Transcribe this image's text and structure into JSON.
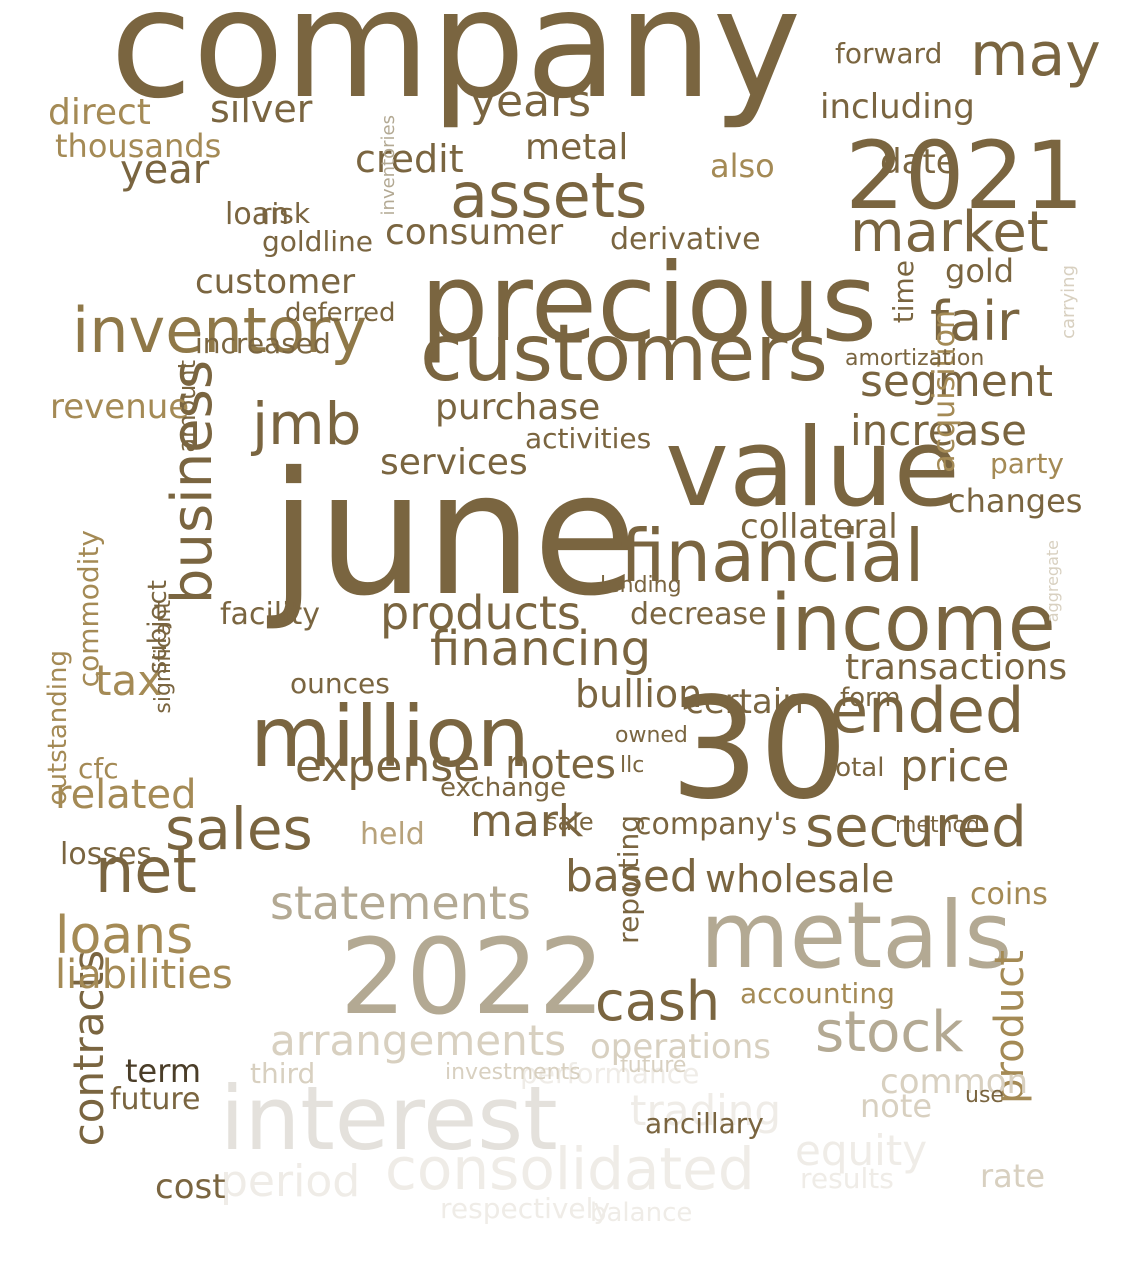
{
  "palette": {
    "dark": "#7a6540",
    "mid": "#8f7848",
    "gold": "#a48a55",
    "tan": "#b7a27b",
    "gray": "#b3a993",
    "light": "#d8d0c0",
    "pale": "#e4e1dc",
    "faint": "#efece7",
    "black": "#4a3d28"
  },
  "words": [
    {
      "text": "company",
      "weight": 1.0,
      "color": "dark",
      "rot": 0
    },
    {
      "text": "june",
      "weight": 0.95,
      "color": "dark",
      "rot": 0
    },
    {
      "text": "precious",
      "weight": 0.9,
      "color": "dark",
      "rot": 0
    },
    {
      "text": "30",
      "weight": 0.88,
      "color": "dark",
      "rot": 0
    },
    {
      "text": "value",
      "weight": 0.85,
      "color": "dark",
      "rot": 0
    },
    {
      "text": "2021",
      "weight": 0.8,
      "color": "dark",
      "rot": 0
    },
    {
      "text": "metals",
      "weight": 0.78,
      "color": "gray",
      "rot": 0
    },
    {
      "text": "2022",
      "weight": 0.78,
      "color": "gray",
      "rot": 0
    },
    {
      "text": "million",
      "weight": 0.75,
      "color": "dark",
      "rot": 0
    },
    {
      "text": "customers",
      "weight": 0.74,
      "color": "dark",
      "rot": 0
    },
    {
      "text": "financial",
      "weight": 0.72,
      "color": "dark",
      "rot": 0
    },
    {
      "text": "income",
      "weight": 0.72,
      "color": "dark",
      "rot": 0
    },
    {
      "text": "interest",
      "weight": 0.72,
      "color": "pale",
      "rot": 0
    },
    {
      "text": "business",
      "weight": 0.7,
      "color": "dark",
      "rot": -90
    },
    {
      "text": "inventory",
      "weight": 0.68,
      "color": "mid",
      "rot": 0
    },
    {
      "text": "assets",
      "weight": 0.66,
      "color": "dark",
      "rot": 0
    },
    {
      "text": "secured",
      "weight": 0.6,
      "color": "dark",
      "rot": 0
    },
    {
      "text": "sales",
      "weight": 0.6,
      "color": "dark",
      "rot": 0
    },
    {
      "text": "ended",
      "weight": 0.6,
      "color": "dark",
      "rot": 0
    },
    {
      "text": "net",
      "weight": 0.6,
      "color": "dark",
      "rot": 0
    },
    {
      "text": "market",
      "weight": 0.58,
      "color": "dark",
      "rot": 0
    },
    {
      "text": "consolidated",
      "weight": 0.58,
      "color": "faint",
      "rot": 0
    },
    {
      "text": "stock",
      "weight": 0.56,
      "color": "gray",
      "rot": 0
    },
    {
      "text": "fair",
      "weight": 0.56,
      "color": "dark",
      "rot": 0
    },
    {
      "text": "may",
      "weight": 0.56,
      "color": "dark",
      "rot": 0
    },
    {
      "text": "cash",
      "weight": 0.56,
      "color": "dark",
      "rot": 0
    },
    {
      "text": "jmb",
      "weight": 0.56,
      "color": "dark",
      "rot": 0
    },
    {
      "text": "statements",
      "weight": 0.54,
      "color": "gray",
      "rot": 0
    },
    {
      "text": "arrangements",
      "weight": 0.52,
      "color": "light",
      "rot": 0
    },
    {
      "text": "loans",
      "weight": 0.52,
      "color": "gold",
      "rot": 0
    },
    {
      "text": "period",
      "weight": 0.52,
      "color": "faint",
      "rot": 0
    },
    {
      "text": "equity",
      "weight": 0.5,
      "color": "faint",
      "rot": 0
    },
    {
      "text": "products",
      "weight": 0.5,
      "color": "dark",
      "rot": 0
    },
    {
      "text": "financing",
      "weight": 0.5,
      "color": "dark",
      "rot": 0
    },
    {
      "text": "expense",
      "weight": 0.48,
      "color": "dark",
      "rot": 0
    },
    {
      "text": "segment",
      "weight": 0.48,
      "color": "dark",
      "rot": 0
    },
    {
      "text": "increase",
      "weight": 0.48,
      "color": "dark",
      "rot": 0
    },
    {
      "text": "price",
      "weight": 0.48,
      "color": "dark",
      "rot": 0
    },
    {
      "text": "based",
      "weight": 0.48,
      "color": "dark",
      "rot": 0
    },
    {
      "text": "mark",
      "weight": 0.48,
      "color": "dark",
      "rot": 0
    },
    {
      "text": "contracts",
      "weight": 0.48,
      "color": "dark",
      "rot": -90
    },
    {
      "text": "product",
      "weight": 0.48,
      "color": "gold",
      "rot": -90
    },
    {
      "text": "trading",
      "weight": 0.48,
      "color": "faint",
      "rot": 0
    },
    {
      "text": "credit",
      "weight": 0.46,
      "color": "dark",
      "rot": 0
    },
    {
      "text": "years",
      "weight": 0.46,
      "color": "dark",
      "rot": 0
    },
    {
      "text": "year",
      "weight": 0.46,
      "color": "dark",
      "rot": 0
    },
    {
      "text": "consumer",
      "weight": 0.44,
      "color": "dark",
      "rot": 0
    },
    {
      "text": "liabilities",
      "weight": 0.44,
      "color": "gold",
      "rot": 0
    },
    {
      "text": "operations",
      "weight": 0.44,
      "color": "light",
      "rot": 0
    },
    {
      "text": "wholesale",
      "weight": 0.44,
      "color": "dark",
      "rot": 0
    },
    {
      "text": "services",
      "weight": 0.44,
      "color": "dark",
      "rot": 0
    },
    {
      "text": "purchase",
      "weight": 0.44,
      "color": "dark",
      "rot": 0
    },
    {
      "text": "customer",
      "weight": 0.44,
      "color": "dark",
      "rot": 0
    },
    {
      "text": "related",
      "weight": 0.44,
      "color": "gold",
      "rot": 0
    },
    {
      "text": "tax",
      "weight": 0.44,
      "color": "gold",
      "rot": 0
    },
    {
      "text": "transactions",
      "weight": 0.42,
      "color": "dark",
      "rot": 0
    },
    {
      "text": "metal",
      "weight": 0.42,
      "color": "dark",
      "rot": 0
    },
    {
      "text": "silver",
      "weight": 0.42,
      "color": "dark",
      "rot": 0
    },
    {
      "text": "direct",
      "weight": 0.42,
      "color": "gold",
      "rot": 0
    },
    {
      "text": "notes",
      "weight": 0.42,
      "color": "dark",
      "rot": 0
    },
    {
      "text": "bullion",
      "weight": 0.42,
      "color": "dark",
      "rot": 0
    },
    {
      "text": "certain",
      "weight": 0.42,
      "color": "dark",
      "rot": 0
    },
    {
      "text": "collateral",
      "weight": 0.4,
      "color": "dark",
      "rot": 0
    },
    {
      "text": "common",
      "weight": 0.4,
      "color": "light",
      "rot": 0
    },
    {
      "text": "acquisition",
      "weight": 0.4,
      "color": "gold",
      "rot": -90
    },
    {
      "text": "changes",
      "weight": 0.38,
      "color": "dark",
      "rot": 0
    },
    {
      "text": "company's",
      "weight": 0.38,
      "color": "dark",
      "rot": 0
    },
    {
      "text": "derivative",
      "weight": 0.38,
      "color": "dark",
      "rot": 0
    },
    {
      "text": "thousands",
      "weight": 0.38,
      "color": "gold",
      "rot": 0
    },
    {
      "text": "date",
      "weight": 0.38,
      "color": "dark",
      "rot": 0
    },
    {
      "text": "including",
      "weight": 0.38,
      "color": "dark",
      "rot": 0
    },
    {
      "text": "forward",
      "weight": 0.38,
      "color": "dark",
      "rot": 0
    },
    {
      "text": "future",
      "weight": 0.36,
      "color": "dark",
      "rot": 0
    },
    {
      "text": "accounting",
      "weight": 0.36,
      "color": "gold",
      "rot": 0
    },
    {
      "text": "revenue",
      "weight": 0.36,
      "color": "gold",
      "rot": 0
    },
    {
      "text": "losses",
      "weight": 0.36,
      "color": "dark",
      "rot": 0
    },
    {
      "text": "cost",
      "weight": 0.36,
      "color": "dark",
      "rot": 0
    },
    {
      "text": "rate",
      "weight": 0.36,
      "color": "light",
      "rot": 0
    },
    {
      "text": "decrease",
      "weight": 0.36,
      "color": "dark",
      "rot": 0
    },
    {
      "text": "facility",
      "weight": 0.36,
      "color": "dark",
      "rot": 0
    },
    {
      "text": "term",
      "weight": 0.36,
      "color": "black",
      "rot": 0
    },
    {
      "text": "note",
      "weight": 0.36,
      "color": "light",
      "rot": 0
    },
    {
      "text": "gold",
      "weight": 0.36,
      "color": "dark",
      "rot": 0
    },
    {
      "text": "also",
      "weight": 0.34,
      "color": "gold",
      "rot": 0
    },
    {
      "text": "loan",
      "weight": 0.34,
      "color": "dark",
      "rot": 0
    },
    {
      "text": "goldline",
      "weight": 0.32,
      "color": "dark",
      "rot": 0
    },
    {
      "text": "activities",
      "weight": 0.32,
      "color": "dark",
      "rot": 0
    },
    {
      "text": "ounces",
      "weight": 0.32,
      "color": "dark",
      "rot": 0
    },
    {
      "text": "exchange",
      "weight": 0.32,
      "color": "dark",
      "rot": 0
    },
    {
      "text": "held",
      "weight": 0.32,
      "color": "tan",
      "rot": 0
    },
    {
      "text": "ancillary",
      "weight": 0.32,
      "color": "dark",
      "rot": 0
    },
    {
      "text": "third",
      "weight": 0.32,
      "color": "light",
      "rot": 0
    },
    {
      "text": "coins",
      "weight": 0.32,
      "color": "gold",
      "rot": 0
    },
    {
      "text": "party",
      "weight": 0.32,
      "color": "gold",
      "rot": 0
    },
    {
      "text": "risk",
      "weight": 0.32,
      "color": "dark",
      "rot": 0
    },
    {
      "text": "commodity",
      "weight": 0.32,
      "color": "gold",
      "rot": -90
    },
    {
      "text": "performance",
      "weight": 0.3,
      "color": "faint",
      "rot": 0
    },
    {
      "text": "results",
      "weight": 0.3,
      "color": "faint",
      "rot": 0
    },
    {
      "text": "respectively",
      "weight": 0.3,
      "color": "faint",
      "rot": 0
    },
    {
      "text": "balance",
      "weight": 0.3,
      "color": "faint",
      "rot": 0
    },
    {
      "text": "increased",
      "weight": 0.3,
      "color": "dark",
      "rot": 0
    },
    {
      "text": "deferred",
      "weight": 0.3,
      "color": "dark",
      "rot": 0
    },
    {
      "text": "time",
      "weight": 0.3,
      "color": "dark",
      "rot": -90
    },
    {
      "text": "total",
      "weight": 0.3,
      "color": "dark",
      "rot": 0
    },
    {
      "text": "form",
      "weight": 0.3,
      "color": "dark",
      "rot": 0
    },
    {
      "text": "cfc",
      "weight": 0.3,
      "color": "gold",
      "rot": 0
    },
    {
      "text": "outstanding",
      "weight": 0.3,
      "color": "gold",
      "rot": -90
    },
    {
      "text": "subject",
      "weight": 0.3,
      "color": "dark",
      "rot": -90
    },
    {
      "text": "amount",
      "weight": 0.3,
      "color": "dark",
      "rot": -90
    },
    {
      "text": "reporting",
      "weight": 0.3,
      "color": "dark",
      "rot": -90
    },
    {
      "text": "sale",
      "weight": 0.3,
      "color": "dark",
      "rot": 0
    },
    {
      "text": "investments",
      "weight": 0.28,
      "color": "light",
      "rot": 0
    },
    {
      "text": "future",
      "weight": 0.28,
      "color": "light",
      "rot": 0
    },
    {
      "text": "use",
      "weight": 0.28,
      "color": "dark",
      "rot": 0
    },
    {
      "text": "method",
      "weight": 0.28,
      "color": "dark",
      "rot": 0
    },
    {
      "text": "lending",
      "weight": 0.28,
      "color": "dark",
      "rot": 0
    },
    {
      "text": "owned",
      "weight": 0.28,
      "color": "dark",
      "rot": 0
    },
    {
      "text": "llc",
      "weight": 0.28,
      "color": "dark",
      "rot": 0
    },
    {
      "text": "amortization",
      "weight": 0.28,
      "color": "dark",
      "rot": 0
    },
    {
      "text": "significant",
      "weight": 0.28,
      "color": "dark",
      "rot": -90
    },
    {
      "text": "inventories",
      "weight": 0.22,
      "color": "gray",
      "rot": -90
    },
    {
      "text": "carrying",
      "weight": 0.22,
      "color": "light",
      "rot": -90
    },
    {
      "text": "aggregate",
      "weight": 0.2,
      "color": "light",
      "rot": -90
    }
  ]
}
